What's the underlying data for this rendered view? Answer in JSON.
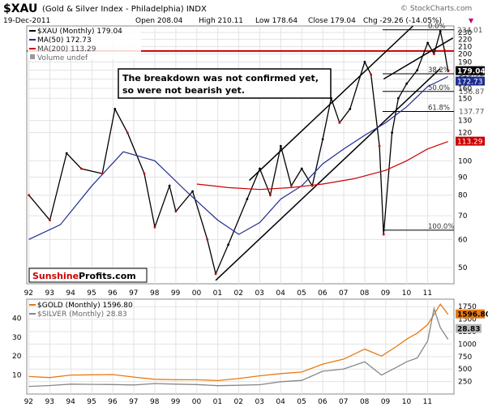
{
  "header": {
    "symbol": "$XAU",
    "name": "(Gold & Silver Index - Philadelphia) INDX",
    "watermark": "© StockCharts.com",
    "date": "19-Dec-2011",
    "open": "Open 208.04",
    "high": "High 210.11",
    "low": "Low 178.64",
    "close": "Close 179.04",
    "change": "Chg -29.26 (-14.05%)",
    "change_marker": "▼"
  },
  "legend": {
    "main": "$XAU (Monthly) 179.04",
    "ma50": "MA(50) 172.73",
    "ma200": "MA(200) 113.29",
    "volume": "Volume undef"
  },
  "annotation": {
    "line1": "The breakdown was not confirmed yet,",
    "line2": "so were not bearish yet."
  },
  "brand": {
    "part1": "Sunshine",
    "part2": "Profits.com"
  },
  "colors": {
    "up": "#000000",
    "down": "#cc0000",
    "ma50": "#1f2d8f",
    "ma200": "#cc0000",
    "gold": "#e87a10",
    "silver": "#888888",
    "price_tag": "#000000",
    "ma200_tag": "#cc0000",
    "brand_red": "#cc0000"
  },
  "chart_data": [
    {
      "type": "line",
      "title": "$XAU (Gold & Silver Index - Philadelphia) INDX",
      "scale": "log",
      "x_ticks": [
        "92",
        "93",
        "94",
        "95",
        "96",
        "97",
        "98",
        "99",
        "00",
        "01",
        "02",
        "03",
        "04",
        "05",
        "06",
        "07",
        "08",
        "09",
        "10",
        "11"
      ],
      "ylim": [
        45,
        240
      ],
      "y_ticks": [
        50,
        60,
        70,
        80,
        90,
        100,
        120,
        130,
        150,
        160,
        170,
        180,
        190,
        200,
        210,
        220,
        230
      ],
      "series": [
        {
          "name": "$XAU (Monthly)",
          "x": [
            1992.0,
            1993.0,
            1993.8,
            1994.5,
            1995.5,
            1996.1,
            1996.7,
            1997.5,
            1998.0,
            1998.7,
            1999.0,
            1999.8,
            2000.5,
            2000.9,
            2001.5,
            2002.4,
            2003.0,
            2003.5,
            2004.0,
            2004.5,
            2005.0,
            2005.5,
            2006.0,
            2006.4,
            2006.8,
            2007.3,
            2008.0,
            2008.3,
            2008.7,
            2008.9,
            2009.3,
            2009.6,
            2010.0,
            2010.5,
            2011.0,
            2011.3,
            2011.6,
            2011.8,
            2011.97
          ],
          "values": [
            80,
            68,
            105,
            95,
            92,
            140,
            120,
            92,
            65,
            85,
            72,
            82,
            60,
            48,
            58,
            78,
            95,
            80,
            110,
            85,
            95,
            85,
            115,
            150,
            128,
            140,
            190,
            175,
            110,
            62,
            120,
            150,
            165,
            180,
            215,
            200,
            232,
            205,
            179.04
          ]
        },
        {
          "name": "MA(50)",
          "x": [
            1992.0,
            1993.5,
            1995.0,
            1996.5,
            1998.0,
            1999.5,
            2001.0,
            2002.0,
            2003.0,
            2004.0,
            2005.0,
            2006.0,
            2007.0,
            2008.0,
            2009.0,
            2010.0,
            2011.0,
            2011.97
          ],
          "values": [
            60,
            66,
            85,
            106,
            100,
            82,
            68,
            62,
            67,
            78,
            85,
            98,
            108,
            118,
            128,
            142,
            162,
            172.73
          ]
        },
        {
          "name": "MA(200)",
          "x": [
            2000.0,
            2001.5,
            2003.0,
            2004.5,
            2006.0,
            2007.5,
            2009.0,
            2010.0,
            2011.0,
            2011.97
          ],
          "values": [
            86,
            84,
            83,
            84,
            86,
            89,
            94,
            100,
            108,
            113.29
          ]
        }
      ],
      "price_labels": [
        "234.01",
        "179.04",
        "172.73",
        "113.29"
      ],
      "fib_levels": [
        {
          "label": "0.0%",
          "value": 234.01
        },
        {
          "label": "38.2%",
          "value": 175.92
        },
        {
          "label": "50.0%",
          "value": 156.87
        },
        {
          "label": "61.8%",
          "value": 137.77
        },
        {
          "label": "100.0%",
          "value": 63.72
        }
      ],
      "fib_value_labels": [
        "175.92",
        "156.87",
        "137.77"
      ],
      "legend": "top-left"
    },
    {
      "type": "line",
      "x_ticks": [
        "92",
        "93",
        "94",
        "95",
        "96",
        "97",
        "98",
        "99",
        "00",
        "01",
        "02",
        "03",
        "04",
        "05",
        "06",
        "07",
        "08",
        "09",
        "10",
        "11"
      ],
      "ylim_left": [
        0,
        50
      ],
      "y_ticks_left": [
        10,
        20,
        30,
        40
      ],
      "ylim_right": [
        0,
        1900
      ],
      "y_ticks_right": [
        250,
        500,
        750,
        1000,
        1250,
        1500,
        1750
      ],
      "series": [
        {
          "name": "$GOLD (Monthly) 1596.80",
          "axis": "right",
          "x": [
            1992.0,
            1993.0,
            1994.0,
            1995.0,
            1996.0,
            1997.0,
            1998.0,
            1999.0,
            2000.0,
            2001.0,
            2002.0,
            2003.0,
            2004.0,
            2005.0,
            2006.0,
            2007.0,
            2008.0,
            2008.8,
            2009.5,
            2010.0,
            2010.5,
            2011.0,
            2011.6,
            2011.97
          ],
          "values": [
            350,
            330,
            380,
            385,
            390,
            340,
            295,
            285,
            285,
            270,
            310,
            365,
            410,
            440,
            600,
            700,
            900,
            760,
            950,
            1100,
            1220,
            1390,
            1800,
            1596.8
          ]
        },
        {
          "name": "$SILVER (Monthly) 28.83",
          "axis": "left",
          "x": [
            1992.0,
            1993.0,
            1994.0,
            1995.0,
            1996.0,
            1997.0,
            1998.0,
            1999.0,
            2000.0,
            2001.0,
            2002.0,
            2003.0,
            2004.0,
            2005.0,
            2006.0,
            2007.0,
            2008.0,
            2008.8,
            2009.5,
            2010.0,
            2010.5,
            2011.0,
            2011.3,
            2011.6,
            2011.97
          ],
          "values": [
            4,
            4.5,
            5.2,
            5.1,
            5.0,
            4.8,
            5.5,
            5.2,
            5.0,
            4.4,
            4.6,
            4.9,
            6.5,
            7.2,
            12.0,
            13.2,
            17.0,
            10.0,
            14.0,
            17.0,
            19.0,
            28.0,
            45.0,
            35.0,
            28.83
          ]
        }
      ],
      "price_labels": [
        "1596.80",
        "28.83"
      ],
      "legend": "top-left"
    }
  ]
}
